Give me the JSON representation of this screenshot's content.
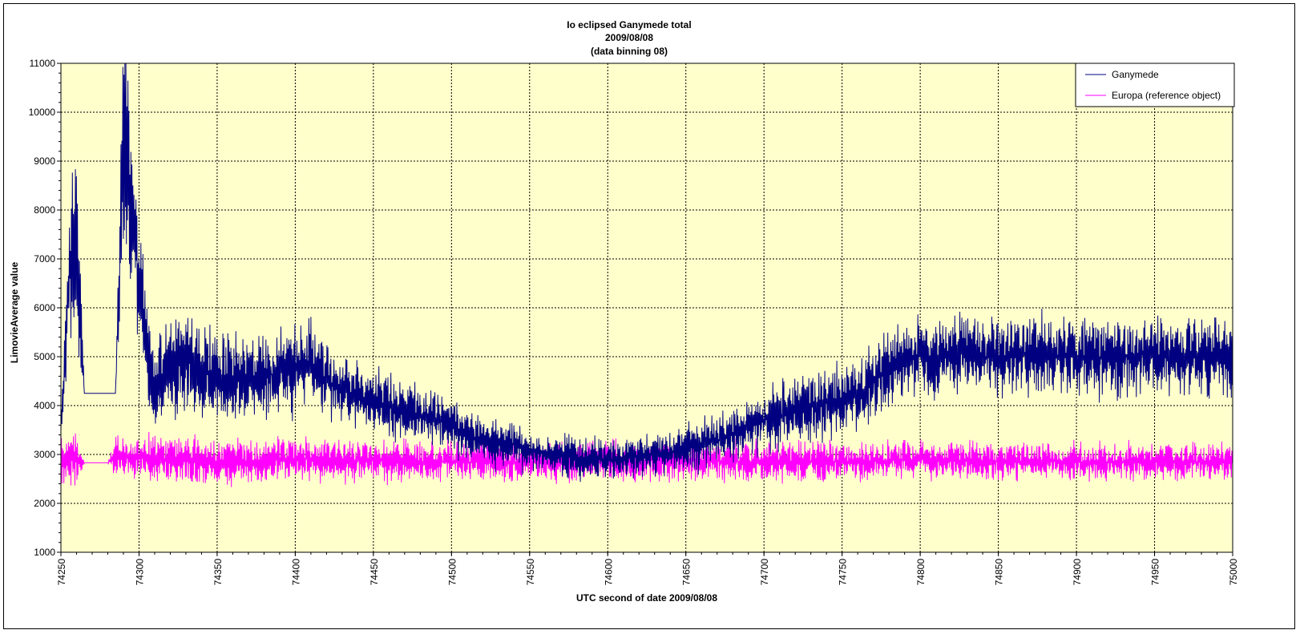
{
  "chart_data": {
    "type": "line",
    "title": [
      "Io  eclipsed Ganymede total",
      "2009/08/08",
      "(data binning 08)"
    ],
    "xlabel": "UTC second  of date 2009/08/08",
    "ylabel": "LimovieAverage value",
    "xlim": [
      74250,
      75000
    ],
    "ylim": [
      1000,
      11000
    ],
    "x_ticks": [
      "74250",
      "74300",
      "74350",
      "74400",
      "74450",
      "74500",
      "74550",
      "74600",
      "74650",
      "74700",
      "74750",
      "74800",
      "74850",
      "74900",
      "74950",
      "75000"
    ],
    "y_ticks": [
      "1000",
      "2000",
      "3000",
      "4000",
      "5000",
      "6000",
      "7000",
      "8000",
      "9000",
      "10000",
      "11000"
    ],
    "grid": true,
    "legend_position": "top-right",
    "plot_background": "#ffffcc",
    "series": [
      {
        "name": "Ganymede",
        "color": "#000080",
        "x": [
          74250,
          74255,
          74260,
          74265,
          74270,
          74275,
          74280,
          74285,
          74290,
          74295,
          74300,
          74305,
          74310,
          74315,
          74320,
          74330,
          74340,
          74350,
          74360,
          74370,
          74380,
          74390,
          74400,
          74410,
          74420,
          74430,
          74440,
          74450,
          74460,
          74470,
          74480,
          74490,
          74500,
          74510,
          74520,
          74530,
          74540,
          74550,
          74560,
          74570,
          74580,
          74590,
          74600,
          74610,
          74620,
          74630,
          74640,
          74650,
          74660,
          74670,
          74680,
          74690,
          74700,
          74710,
          74720,
          74730,
          74740,
          74750,
          74760,
          74770,
          74780,
          74790,
          74800,
          74810,
          74820,
          74830,
          74840,
          74850,
          74860,
          74870,
          74880,
          74890,
          74900,
          74910,
          74920,
          74930,
          74940,
          74950,
          74960,
          74970,
          74980,
          74990,
          75000
        ],
        "values": [
          3500,
          6500,
          7500,
          4250,
          4250,
          4250,
          4250,
          4250,
          9500,
          8000,
          6500,
          5000,
          4300,
          4500,
          4800,
          4900,
          4700,
          4600,
          4600,
          4500,
          4600,
          4700,
          4700,
          4900,
          4500,
          4300,
          4200,
          4000,
          4000,
          3900,
          3800,
          3700,
          3600,
          3400,
          3300,
          3200,
          3200,
          3100,
          3000,
          3000,
          2900,
          2900,
          2900,
          2900,
          2950,
          3000,
          3050,
          3100,
          3200,
          3300,
          3400,
          3550,
          3700,
          3800,
          3900,
          4000,
          4050,
          4100,
          4200,
          4500,
          4800,
          4900,
          5000,
          5000,
          5050,
          5100,
          5000,
          5000,
          5050,
          5100,
          5050,
          5000,
          5000,
          5000,
          4950,
          5000,
          5050,
          5050,
          5000,
          5000,
          5000,
          5000,
          5000
        ],
        "amplitude": [
          300,
          1200,
          2200,
          0,
          0,
          0,
          0,
          0,
          2600,
          2300,
          1500,
          900,
          900,
          1100,
          1000,
          1000,
          900,
          850,
          800,
          800,
          800,
          800,
          800,
          750,
          700,
          700,
          650,
          650,
          600,
          600,
          550,
          550,
          500,
          500,
          450,
          450,
          450,
          450,
          400,
          400,
          400,
          400,
          400,
          400,
          400,
          400,
          450,
          450,
          500,
          500,
          550,
          550,
          600,
          650,
          650,
          700,
          700,
          700,
          700,
          750,
          750,
          750,
          750,
          750,
          750,
          750,
          750,
          750,
          750,
          750,
          750,
          750,
          750,
          750,
          750,
          750,
          750,
          750,
          750,
          750,
          750,
          750,
          750
        ]
      },
      {
        "name": "Europa (reference object)",
        "color": "#ff00ff",
        "x": [
          74250,
          74255,
          74260,
          74265,
          74270,
          74275,
          74280,
          74285,
          74290,
          74300,
          74350,
          74400,
          74450,
          74500,
          74550,
          74600,
          74650,
          74700,
          74750,
          74800,
          74850,
          74900,
          74950,
          75000
        ],
        "values": [
          2900,
          2900,
          2900,
          2830,
          2830,
          2830,
          2830,
          2950,
          2950,
          2950,
          2850,
          2900,
          2880,
          2850,
          2850,
          2850,
          2880,
          2850,
          2850,
          2900,
          2850,
          2850,
          2850,
          2850
        ],
        "amplitude": [
          550,
          550,
          500,
          0,
          0,
          0,
          0,
          450,
          450,
          450,
          450,
          400,
          400,
          380,
          380,
          380,
          380,
          380,
          380,
          350,
          350,
          350,
          350,
          350
        ]
      }
    ]
  }
}
